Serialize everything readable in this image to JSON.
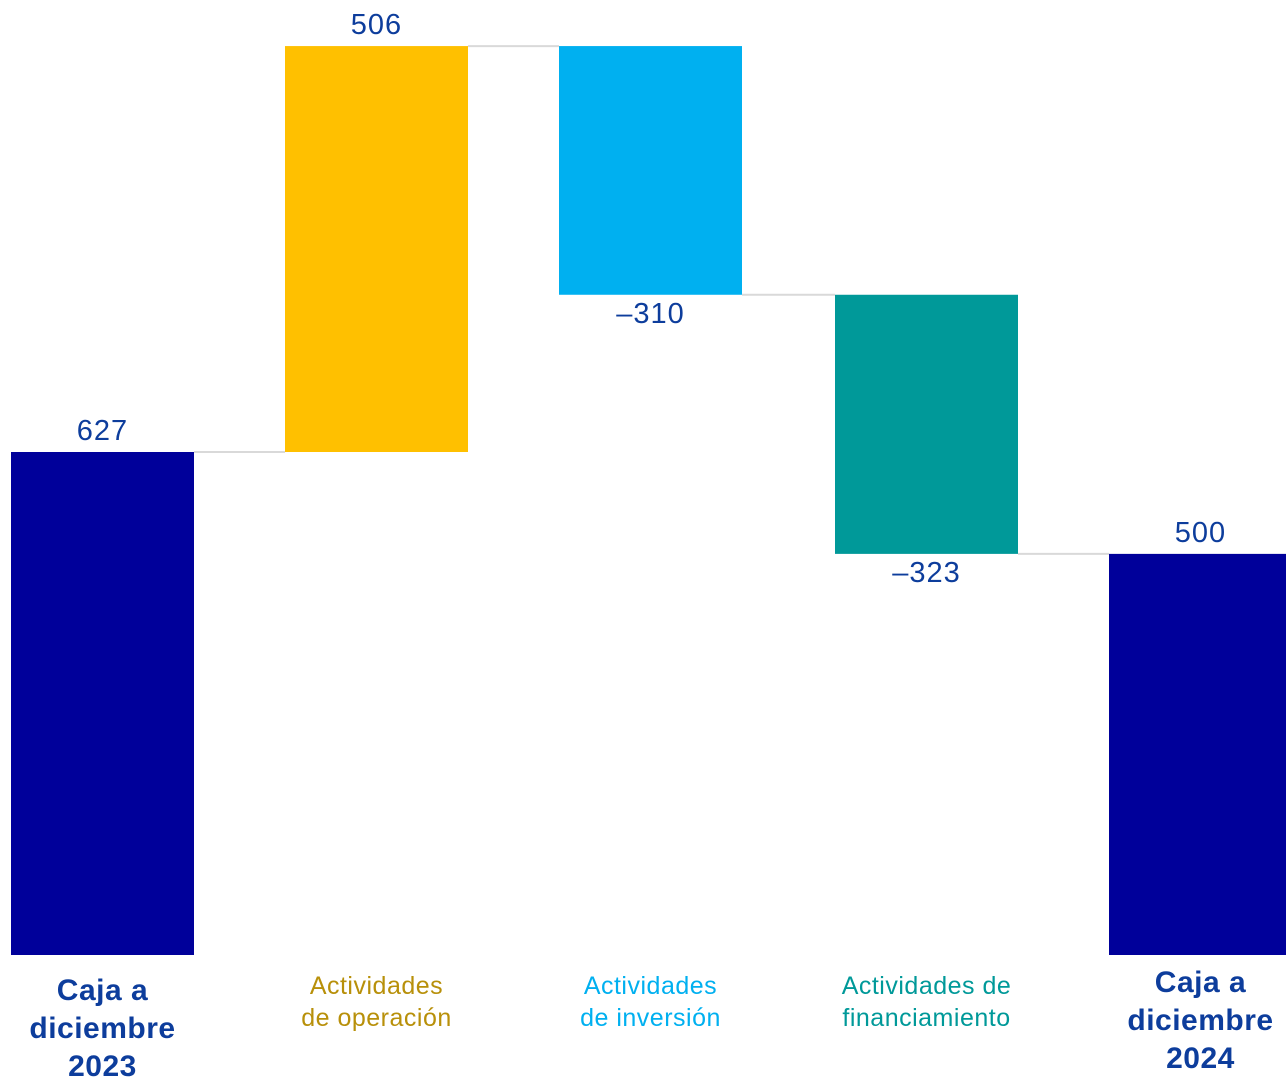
{
  "chart_data": {
    "type": "bar",
    "subtype": "waterfall",
    "title": "",
    "xlabel": "",
    "ylabel": "",
    "ylim": [
      0,
      1133
    ],
    "grid": false,
    "legend": "none",
    "categories": [
      "Caja a diciembre 2023",
      "Actividades de operación",
      "Actividades de inversión",
      "Actividades de financiamiento",
      "Caja a diciembre 2024"
    ],
    "category_lines": [
      [
        "Caja a",
        "diciembre",
        "2023"
      ],
      [
        "Actividades",
        "de operación"
      ],
      [
        "Actividades",
        "de inversión"
      ],
      [
        "Actividades de",
        "financiamiento"
      ],
      [
        "Caja a",
        "diciembre",
        "2024"
      ]
    ],
    "values": [
      627,
      506,
      -310,
      -323,
      500
    ],
    "value_labels": [
      "627",
      "506",
      "–310",
      "–323",
      "500"
    ],
    "kinds": [
      "total",
      "delta",
      "delta",
      "delta",
      "total"
    ],
    "colors": [
      "#00009a",
      "#ffc000",
      "#00b0f0",
      "#009999",
      "#00009a"
    ],
    "label_colors": [
      "#0d3d9c",
      "#b8900a",
      "#00b0f0",
      "#009999",
      "#0d3d9c"
    ],
    "value_label_color": "#0d3d9c",
    "connector_color": "#d9d9d9"
  }
}
